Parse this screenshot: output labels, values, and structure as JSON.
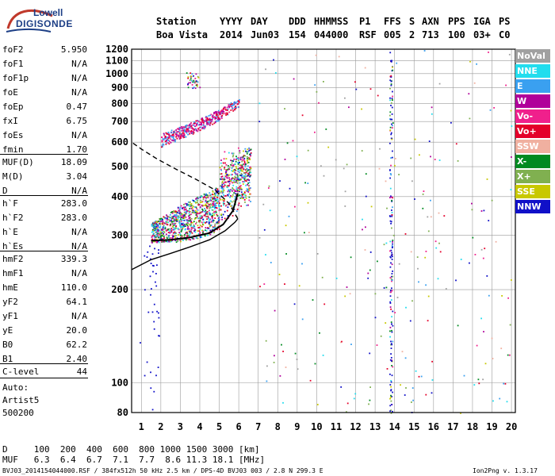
{
  "logo": {
    "line1": "Lowell",
    "line2": "DIGISONDE"
  },
  "header": {
    "labels": [
      "Station",
      "YYYY",
      "DAY",
      "DDD",
      "HHMMSS",
      "P1",
      "FFS",
      "S",
      "AXN",
      "PPS",
      "IGA",
      "PS"
    ],
    "values": [
      "Boa Vista",
      "2014",
      "Jun03",
      "154",
      "044000",
      "RSF",
      "005",
      "2",
      "713",
      "100",
      "03+",
      "C0"
    ]
  },
  "params": {
    "group1": [
      {
        "k": "foF2",
        "v": "5.950"
      },
      {
        "k": "foF1",
        "v": "N/A"
      },
      {
        "k": "foF1p",
        "v": "N/A"
      },
      {
        "k": "foE",
        "v": "N/A"
      },
      {
        "k": "foEp",
        "v": "0.47"
      },
      {
        "k": "fxI",
        "v": "6.75"
      },
      {
        "k": "foEs",
        "v": "N/A"
      },
      {
        "k": "fmin",
        "v": "1.70"
      }
    ],
    "group2": [
      {
        "k": "MUF(D)",
        "v": "18.09"
      },
      {
        "k": "M(D)",
        "v": "3.04"
      },
      {
        "k": "D",
        "v": "N/A"
      }
    ],
    "group3": [
      {
        "k": "h`F",
        "v": "283.0"
      },
      {
        "k": "h`F2",
        "v": "283.0"
      },
      {
        "k": "h`E",
        "v": "N/A"
      },
      {
        "k": "h`Es",
        "v": "N/A"
      }
    ],
    "group4": [
      {
        "k": "hmF2",
        "v": "339.3"
      },
      {
        "k": "hmF1",
        "v": "N/A"
      },
      {
        "k": "hmE",
        "v": "110.0"
      },
      {
        "k": "yF2",
        "v": "64.1"
      },
      {
        "k": "yF1",
        "v": "N/A"
      },
      {
        "k": "yE",
        "v": "20.0"
      },
      {
        "k": "B0",
        "v": "62.2"
      },
      {
        "k": "B1",
        "v": "2.40"
      }
    ],
    "clevel": {
      "k": "C-level",
      "v": "44"
    },
    "auto": [
      "Auto:",
      "Artist5",
      "500200"
    ]
  },
  "legend": [
    {
      "label": "NoVal",
      "color": "#a0a0a0"
    },
    {
      "label": "NNE",
      "color": "#22ddee"
    },
    {
      "label": "E",
      "color": "#3aa0f0"
    },
    {
      "label": "W",
      "color": "#b0009a"
    },
    {
      "label": "Vo-",
      "color": "#f0208c"
    },
    {
      "label": "Vo+",
      "color": "#e4002a"
    },
    {
      "label": "SSW",
      "color": "#f0b0a0"
    },
    {
      "label": "X-",
      "color": "#008a20"
    },
    {
      "label": "X+",
      "color": "#80b050"
    },
    {
      "label": "SSE",
      "color": "#c8c800"
    },
    {
      "label": "NNW",
      "color": "#1010c8"
    }
  ],
  "muf_table": {
    "d_row": "D     100  200  400  600  800 1000 1500 3000 [km]",
    "muf_row": "MUF   6.3  6.4  6.7  7.1  7.7  8.6 11.3 18.1 [MHz]"
  },
  "footer": {
    "left": "BVJ03_2014154044000.RSF / 384fx512h 50 kHz 2.5 km / DPS-4D BVJ03 003 / 2.8 N 299.3 E",
    "right": "Ion2Png v. 1.3.17"
  },
  "chart_data": {
    "type": "scatter",
    "title": "",
    "xlabel": "",
    "ylabel": "",
    "xlim": [
      0.5,
      20.2
    ],
    "ylim": [
      80,
      1200
    ],
    "x_ticks": [
      1,
      2,
      3,
      4,
      5,
      6,
      7,
      8,
      9,
      10,
      11,
      12,
      13,
      14,
      15,
      16,
      17,
      18,
      19,
      20
    ],
    "y_ticks": [
      80,
      100,
      200,
      300,
      400,
      500,
      600,
      700,
      800,
      900,
      1000,
      1100,
      1200
    ],
    "y_scale": "log",
    "grid": true,
    "traces": [
      {
        "name": "F2 echo trace",
        "f_range": [
          1.5,
          6.6
        ],
        "h_range": [
          280,
          520
        ]
      },
      {
        "name": "second-hop trace",
        "f_range": [
          2.0,
          6.0
        ],
        "h_range": [
          580,
          830
        ]
      },
      {
        "name": "upper sparse trace",
        "f_range": [
          3.3,
          4.0
        ],
        "h_range": [
          900,
          1010
        ]
      },
      {
        "name": "interference line",
        "f": 13.8,
        "h_range": [
          80,
          1200
        ]
      }
    ],
    "profile_curves": [
      {
        "name": "scaled trace",
        "x": [
          1.5,
          2.5,
          3.5,
          4.5,
          5.2,
          5.7,
          5.95
        ],
        "y": [
          288,
          290,
          295,
          305,
          325,
          360,
          410
        ]
      },
      {
        "name": "electron density profile",
        "x": [
          0.5,
          1.5,
          2.5,
          3.5,
          4.5,
          5.3,
          5.8,
          5.95
        ],
        "y": [
          232,
          250,
          262,
          275,
          290,
          310,
          330,
          339
        ]
      },
      {
        "name": "topside profile",
        "x": [
          5.95,
          5.5,
          4.8,
          3.8,
          2.8,
          1.8,
          1.0,
          0.5
        ],
        "y": [
          339,
          380,
          420,
          455,
          490,
          530,
          570,
          600
        ]
      }
    ]
  }
}
